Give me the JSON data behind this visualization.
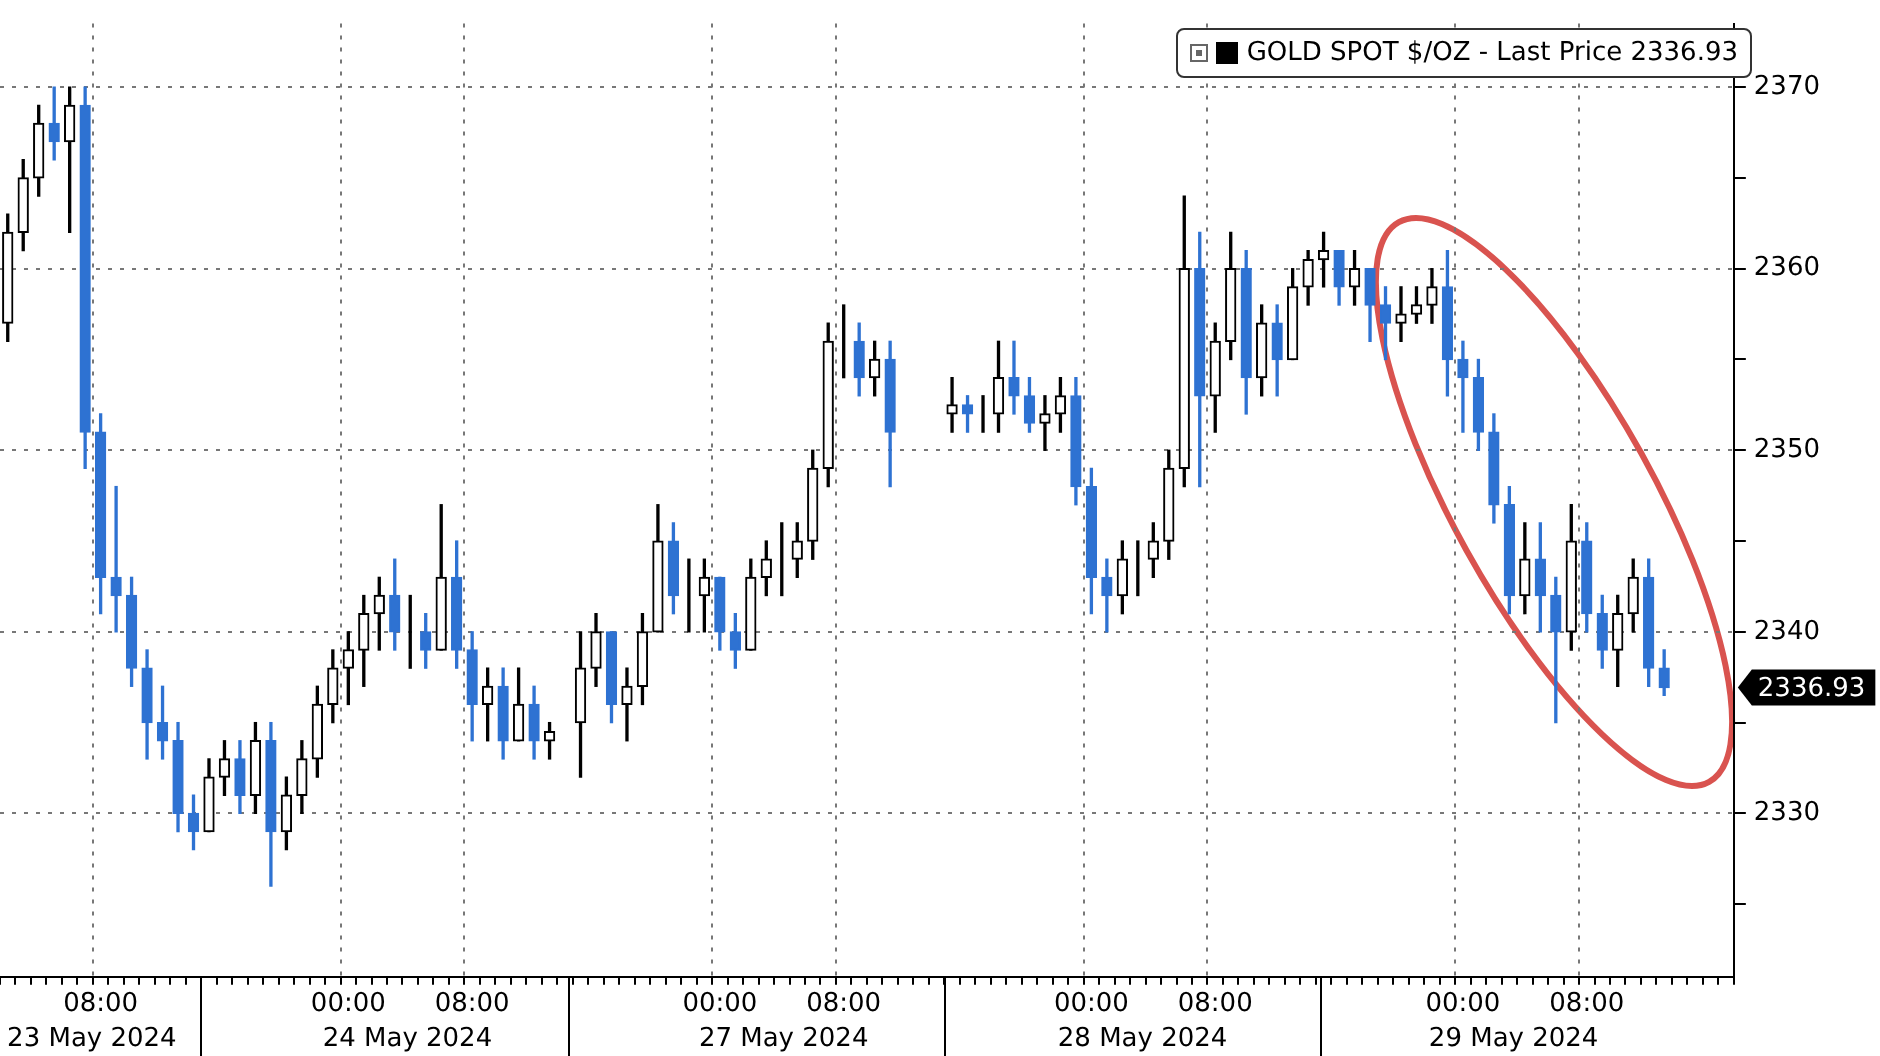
{
  "chart_data": {
    "type": "candlestick",
    "categories": [
      null,
      null,
      null,
      null,
      null,
      null,
      "08:00",
      null,
      null,
      null,
      null,
      null,
      null,
      null,
      null,
      null,
      null,
      null,
      null,
      null,
      null,
      null,
      "00:00",
      null,
      null,
      null,
      null,
      null,
      null,
      null,
      "08:00",
      null,
      null,
      null,
      null,
      null,
      null,
      null,
      null,
      null,
      null,
      null,
      null,
      null,
      null,
      null,
      "00:00",
      null,
      null,
      null,
      null,
      null,
      null,
      null,
      "08:00",
      null,
      null,
      null,
      null,
      null,
      null,
      null,
      null,
      null,
      null,
      null,
      null,
      null,
      null,
      null,
      "00:00",
      null,
      null,
      null,
      null,
      null,
      null,
      null,
      "08:00",
      null,
      null,
      null,
      null,
      null,
      null,
      null,
      null,
      null,
      null,
      null,
      null,
      null,
      null,
      null,
      "00:00",
      null,
      null,
      null,
      null,
      null,
      null,
      null,
      "08:00",
      null,
      null,
      null,
      null,
      null,
      null,
      null,
      null,
      null
    ],
    "series": [
      {
        "name": "GOLD SPOT $/OZ - Last Price 2336.93",
        "color": "#000000",
        "colors": [
          "#000000",
          "#000000",
          "#000000",
          "#2e72d2",
          "#000000",
          "#2e72d2",
          "#2e72d2",
          "#2e72d2",
          "#2e72d2",
          "#2e72d2",
          "#2e72d2",
          "#2e72d2",
          "#2e72d2",
          "#000000",
          "#000000",
          "#2e72d2",
          "#000000",
          "#2e72d2",
          "#000000",
          "#000000",
          "#000000",
          "#000000",
          "#000000",
          "#000000",
          "#000000",
          "#2e72d2",
          "#000000",
          "#2e72d2",
          "#000000",
          "#2e72d2",
          "#2e72d2",
          "#000000",
          "#2e72d2",
          "#000000",
          "#2e72d2",
          "#000000",
          null,
          "#000000",
          "#000000",
          "#2e72d2",
          "#000000",
          "#000000",
          "#000000",
          "#2e72d2",
          "#000000",
          "#000000",
          "#2e72d2",
          "#2e72d2",
          "#000000",
          "#000000",
          "#000000",
          "#000000",
          "#000000",
          "#000000",
          "#000000",
          "#2e72d2",
          "#000000",
          "#2e72d2",
          null,
          null,
          null,
          "#000000",
          "#2e72d2",
          "#000000",
          "#000000",
          "#2e72d2",
          "#2e72d2",
          "#000000",
          "#000000",
          "#2e72d2",
          "#2e72d2",
          "#2e72d2",
          "#000000",
          "#000000",
          "#000000",
          "#000000",
          "#000000",
          "#2e72d2",
          "#000000",
          "#000000",
          "#2e72d2",
          "#000000",
          "#2e72d2",
          "#000000",
          "#000000",
          "#000000",
          "#2e72d2",
          "#000000",
          "#2e72d2",
          "#2e72d2",
          "#000000",
          "#000000",
          "#000000",
          "#2e72d2",
          "#2e72d2",
          "#2e72d2",
          "#2e72d2",
          "#2e72d2",
          "#000000",
          "#2e72d2",
          "#2e72d2",
          "#000000",
          "#2e72d2",
          "#2e72d2",
          "#000000",
          "#000000",
          "#2e72d2",
          "#2e72d2",
          null,
          null,
          null,
          null
        ],
        "ohlc": [
          [
            2357,
            2363,
            2356,
            2362
          ],
          [
            2362,
            2366,
            2361,
            2365
          ],
          [
            2365,
            2369,
            2364,
            2368
          ],
          [
            2368,
            2370,
            2366,
            2367
          ],
          [
            2367,
            2370,
            2362,
            2369
          ],
          [
            2369,
            2370,
            2349,
            2351
          ],
          [
            2351,
            2352,
            2341,
            2343
          ],
          [
            2343,
            2348,
            2340,
            2342
          ],
          [
            2342,
            2343,
            2337,
            2338
          ],
          [
            2338,
            2339,
            2333,
            2335
          ],
          [
            2335,
            2337,
            2333,
            2334
          ],
          [
            2334,
            2335,
            2329,
            2330
          ],
          [
            2330,
            2331,
            2328,
            2329
          ],
          [
            2329,
            2333,
            2329,
            2332
          ],
          [
            2332,
            2334,
            2331,
            2333
          ],
          [
            2333,
            2334,
            2330,
            2331
          ],
          [
            2331,
            2335,
            2330,
            2334
          ],
          [
            2334,
            2335,
            2326,
            2329
          ],
          [
            2329,
            2332,
            2328,
            2331
          ],
          [
            2331,
            2334,
            2330,
            2333
          ],
          [
            2333,
            2337,
            2332,
            2336
          ],
          [
            2336,
            2339,
            2335,
            2338
          ],
          [
            2338,
            2340,
            2336,
            2339
          ],
          [
            2339,
            2342,
            2337,
            2341
          ],
          [
            2341,
            2343,
            2339,
            2342
          ],
          [
            2342,
            2344,
            2339,
            2340
          ],
          [
            2340,
            2342,
            2338,
            2340
          ],
          [
            2340,
            2341,
            2338,
            2339
          ],
          [
            2339,
            2347,
            2339,
            2343
          ],
          [
            2343,
            2345,
            2338,
            2339
          ],
          [
            2339,
            2340,
            2334,
            2336
          ],
          [
            2336,
            2338,
            2334,
            2337
          ],
          [
            2337,
            2338,
            2333,
            2334
          ],
          [
            2334,
            2338,
            2334,
            2336
          ],
          [
            2336,
            2337,
            2333,
            2334
          ],
          [
            2334,
            2335,
            2333,
            2334.5
          ],
          null,
          [
            2335,
            2340,
            2332,
            2338
          ],
          [
            2338,
            2341,
            2337,
            2340
          ],
          [
            2340,
            2340,
            2335,
            2336
          ],
          [
            2336,
            2338,
            2334,
            2337
          ],
          [
            2337,
            2341,
            2336,
            2340
          ],
          [
            2340,
            2347,
            2340,
            2345
          ],
          [
            2345,
            2346,
            2341,
            2342
          ],
          [
            2342,
            2344,
            2340,
            2342
          ],
          [
            2342,
            2344,
            2340,
            2343
          ],
          [
            2343,
            2343,
            2339,
            2340
          ],
          [
            2340,
            2341,
            2338,
            2339
          ],
          [
            2339,
            2344,
            2339,
            2343
          ],
          [
            2343,
            2345,
            2342,
            2344
          ],
          [
            2344,
            2346,
            2342,
            2344
          ],
          [
            2344,
            2346,
            2343,
            2345
          ],
          [
            2345,
            2350,
            2344,
            2349
          ],
          [
            2349,
            2357,
            2348,
            2356
          ],
          [
            2356,
            2358,
            2354,
            2356
          ],
          [
            2356,
            2357,
            2353,
            2354
          ],
          [
            2354,
            2356,
            2353,
            2355
          ],
          [
            2355,
            2356,
            2348,
            2351
          ],
          null,
          null,
          null,
          [
            2352,
            2354,
            2351,
            2352.5
          ],
          [
            2352.5,
            2353,
            2351,
            2352
          ],
          [
            2352,
            2353,
            2351,
            2352
          ],
          [
            2352,
            2356,
            2351,
            2354
          ],
          [
            2354,
            2356,
            2352,
            2353
          ],
          [
            2353,
            2354,
            2351,
            2351.5
          ],
          [
            2351.5,
            2353,
            2350,
            2352
          ],
          [
            2352,
            2354,
            2351,
            2353
          ],
          [
            2353,
            2354,
            2347,
            2348
          ],
          [
            2348,
            2349,
            2341,
            2343
          ],
          [
            2343,
            2344,
            2340,
            2342
          ],
          [
            2342,
            2345,
            2341,
            2344
          ],
          [
            2344,
            2345,
            2342,
            2344
          ],
          [
            2344,
            2346,
            2343,
            2345
          ],
          [
            2345,
            2350,
            2344,
            2349
          ],
          [
            2349,
            2364,
            2348,
            2360
          ],
          [
            2360,
            2362,
            2348,
            2353
          ],
          [
            2353,
            2357,
            2351,
            2356
          ],
          [
            2356,
            2362,
            2355,
            2360
          ],
          [
            2360,
            2361,
            2352,
            2354
          ],
          [
            2354,
            2358,
            2353,
            2357
          ],
          [
            2357,
            2358,
            2353,
            2355
          ],
          [
            2355,
            2360,
            2355,
            2359
          ],
          [
            2359,
            2361,
            2358,
            2360.5
          ],
          [
            2360.5,
            2362,
            2359,
            2361
          ],
          [
            2361,
            2361,
            2358,
            2359
          ],
          [
            2359,
            2361,
            2358,
            2360
          ],
          [
            2360,
            2360,
            2356,
            2358
          ],
          [
            2358,
            2359,
            2355,
            2357
          ],
          [
            2357,
            2359,
            2356,
            2357.5
          ],
          [
            2357.5,
            2359,
            2357,
            2358
          ],
          [
            2358,
            2360,
            2357,
            2359
          ],
          [
            2359,
            2361,
            2353,
            2355
          ],
          [
            2355,
            2356,
            2351,
            2354
          ],
          [
            2354,
            2355,
            2350,
            2351
          ],
          [
            2351,
            2352,
            2346,
            2347
          ],
          [
            2347,
            2348,
            2341,
            2342
          ],
          [
            2342,
            2346,
            2341,
            2344
          ],
          [
            2344,
            2346,
            2340,
            2342
          ],
          [
            2342,
            2343,
            2335,
            2340
          ],
          [
            2340,
            2347,
            2339,
            2345
          ],
          [
            2345,
            2346,
            2340,
            2341
          ],
          [
            2341,
            2342,
            2338,
            2339
          ],
          [
            2339,
            2342,
            2337,
            2341
          ],
          [
            2341,
            2344,
            2340,
            2343
          ],
          [
            2343,
            2344,
            2337,
            2338
          ],
          [
            2338,
            2339,
            2336.5,
            2336.93
          ],
          null,
          null,
          null,
          null
        ]
      }
    ],
    "ylim": [
      2321,
      2373.5
    ],
    "yticks": [
      {
        "value": 2325,
        "label": null
      },
      2330,
      {
        "value": 2335,
        "label": null
      },
      2340,
      {
        "value": 2345,
        "label": null
      },
      2350,
      {
        "value": 2355,
        "label": null
      },
      2360,
      {
        "value": 2365,
        "label": null
      },
      2370
    ],
    "grid": true,
    "legend": "top right",
    "annotations": [
      "23 May 2024",
      "24 May 2024",
      "27 May 2024",
      "28 May 2024",
      "29 May 2024",
      "2336.93"
    ]
  }
}
